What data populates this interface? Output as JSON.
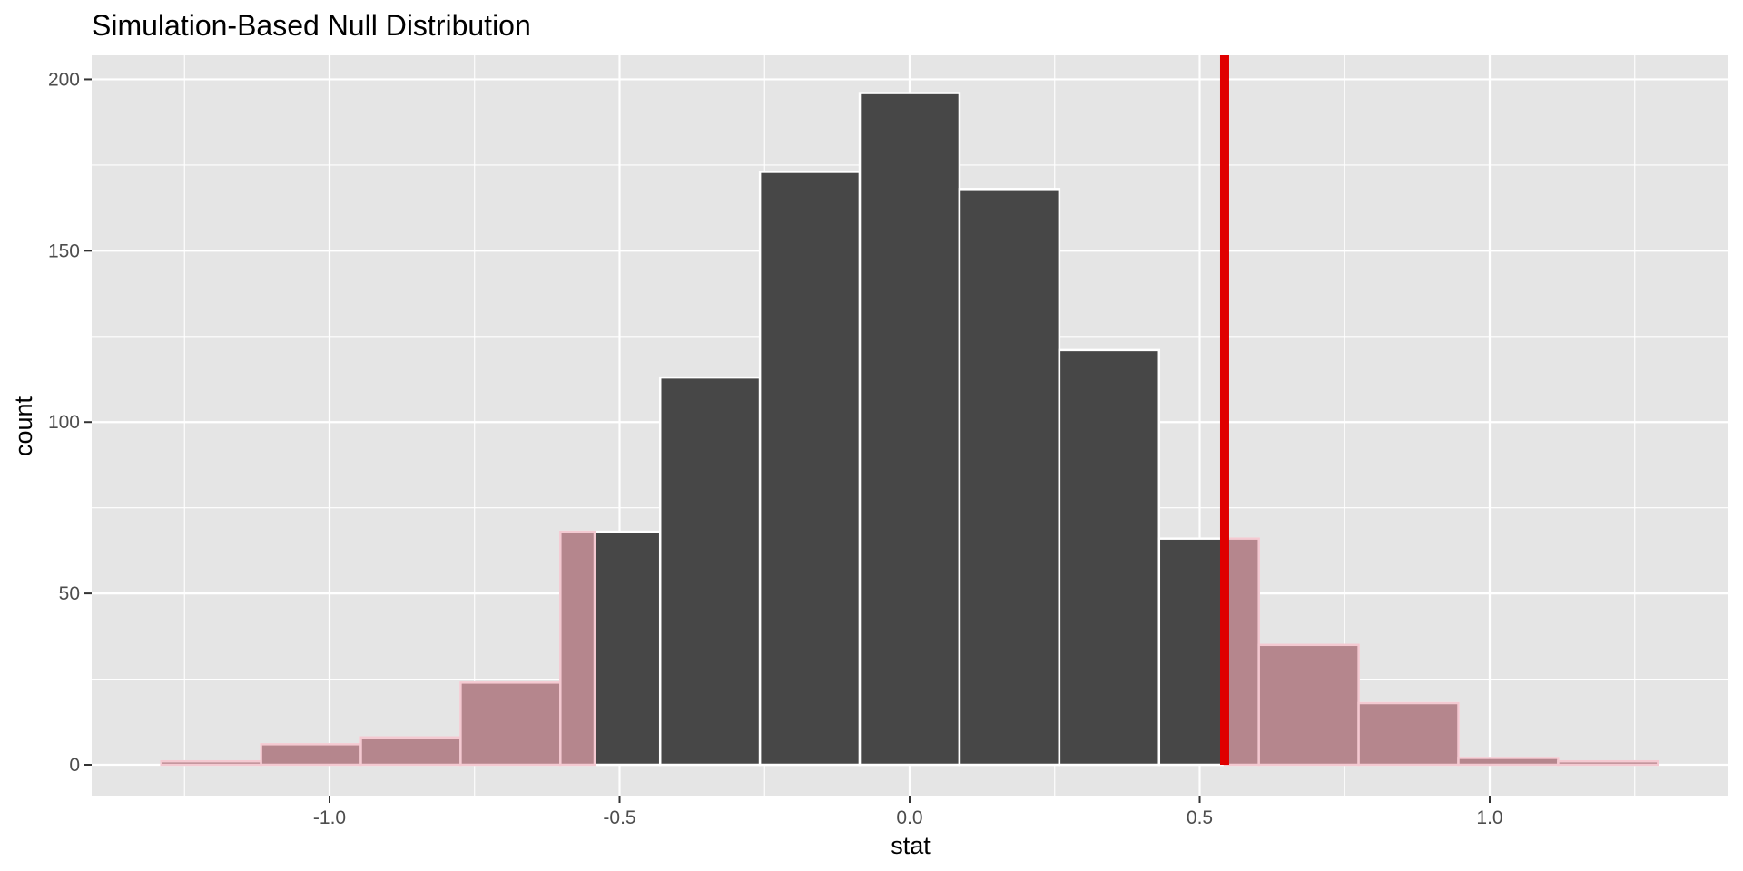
{
  "chart_data": {
    "type": "bar",
    "title": "Simulation-Based Null Distribution",
    "xlabel": "stat",
    "ylabel": "count",
    "xlim": [
      -1.41,
      1.41
    ],
    "ylim": [
      -9,
      207
    ],
    "xticks": [
      -1.0,
      -0.5,
      0.0,
      0.5,
      1.0
    ],
    "xtick_labels": [
      "-1.0",
      "-0.5",
      "0.0",
      "0.5",
      "1.0"
    ],
    "yticks": [
      0,
      50,
      100,
      150,
      200
    ],
    "ytick_labels": [
      "0",
      "50",
      "100",
      "150",
      "200"
    ],
    "grid": true,
    "bin_width": 0.172,
    "bins": [
      {
        "x": -1.204,
        "count": 1
      },
      {
        "x": -1.032,
        "count": 6
      },
      {
        "x": -0.86,
        "count": 8
      },
      {
        "x": -0.688,
        "count": 24
      },
      {
        "x": -0.516,
        "count": 68
      },
      {
        "x": -0.344,
        "count": 113
      },
      {
        "x": -0.172,
        "count": 173
      },
      {
        "x": 0.0,
        "count": 196
      },
      {
        "x": 0.172,
        "count": 168
      },
      {
        "x": 0.344,
        "count": 121
      },
      {
        "x": 0.516,
        "count": 66
      },
      {
        "x": 0.688,
        "count": 35
      },
      {
        "x": 0.86,
        "count": 18
      },
      {
        "x": 1.032,
        "count": 2
      },
      {
        "x": 1.204,
        "count": 1
      }
    ],
    "shade_region": {
      "type": "two-sided",
      "left_below": -0.543,
      "right_above": 0.543
    },
    "observed_stat": 0.543,
    "colors": {
      "bar_fill": "#474747",
      "bar_border": "#ffffff",
      "shade_fill": "#b5868d",
      "shade_border": "#f4c9d1",
      "observed_line": "#e00000",
      "panel": "#e5e5e5",
      "grid": "#ffffff"
    }
  }
}
